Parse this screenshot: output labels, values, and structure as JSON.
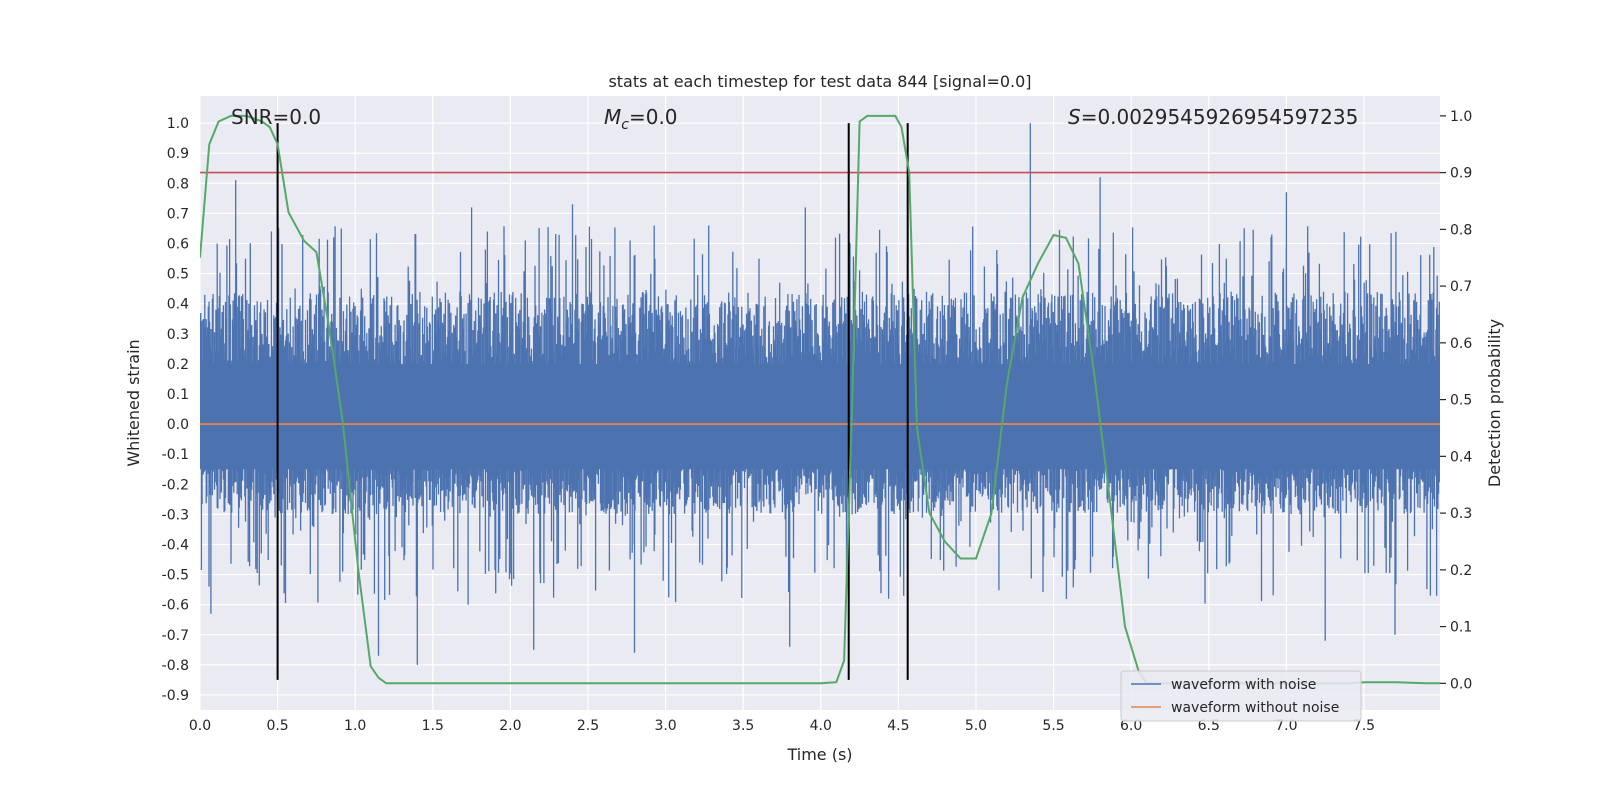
{
  "chart_data": {
    "type": "line",
    "title": "stats at each timestep for test data 844 [signal=0.0]",
    "xlabel": "Time (s)",
    "ylabel_left": "Whitened strain",
    "ylabel_right": "Detection probability",
    "xlim": [
      0.0,
      7.99
    ],
    "ylim_left": [
      -0.95,
      1.09
    ],
    "ylim_right": [
      -0.047,
      1.035
    ],
    "x_ticks": [
      "0.0",
      "0.5",
      "1.0",
      "1.5",
      "2.0",
      "2.5",
      "3.0",
      "3.5",
      "4.0",
      "4.5",
      "5.0",
      "5.5",
      "6.0",
      "6.5",
      "7.0",
      "7.5"
    ],
    "y_left_ticks": [
      "1.0",
      "0.9",
      "0.8",
      "0.7",
      "0.6",
      "0.5",
      "0.4",
      "0.3",
      "0.2",
      "0.1",
      "0.0",
      "-0.1",
      "-0.2",
      "-0.3",
      "-0.4",
      "-0.5",
      "-0.6",
      "-0.7",
      "-0.8",
      "-0.9"
    ],
    "y_right_ticks": [
      "1.0",
      "0.9",
      "0.8",
      "0.7",
      "0.6",
      "0.5",
      "0.4",
      "0.3",
      "0.2",
      "0.1",
      "0.0"
    ],
    "grid": true,
    "legend_position": "bottom-right",
    "annotations": {
      "snr": "SNR=0.0",
      "mc_symbol": "M",
      "mc_sub": "c",
      "mc_value": "=0.0",
      "s_symbol": "S",
      "s_value": "=0.002954592695459723​5"
    },
    "series": [
      {
        "name": "waveform with noise",
        "color": "#4c72b0",
        "kind": "noise",
        "band": [
          -0.3,
          0.44
        ],
        "x_range": [
          0.0,
          7.99
        ],
        "spikes": [
          {
            "x": 0.23,
            "y": 0.81
          },
          {
            "x": 0.46,
            "y": 0.64
          },
          {
            "x": 1.75,
            "y": 0.72
          },
          {
            "x": 2.4,
            "y": 0.73
          },
          {
            "x": 3.9,
            "y": 0.72
          },
          {
            "x": 5.35,
            "y": 1.0
          },
          {
            "x": 5.8,
            "y": 0.82
          },
          {
            "x": 7.0,
            "y": 0.77
          },
          {
            "x": 0.07,
            "y": -0.63
          },
          {
            "x": 1.4,
            "y": -0.8
          },
          {
            "x": 1.15,
            "y": -0.77
          },
          {
            "x": 2.15,
            "y": -0.75
          },
          {
            "x": 2.8,
            "y": -0.76
          },
          {
            "x": 3.8,
            "y": -0.74
          },
          {
            "x": 7.25,
            "y": -0.72
          },
          {
            "x": 7.7,
            "y": -0.7
          }
        ]
      },
      {
        "name": "waveform without noise",
        "color": "#dd8452",
        "x": [
          0.0,
          7.99
        ],
        "y": [
          0.0,
          0.0
        ]
      }
    ],
    "detection_probability": {
      "color": "#55a868",
      "x": [
        0.0,
        0.06,
        0.12,
        0.2,
        0.3,
        0.4,
        0.45,
        0.5,
        0.57,
        0.67,
        0.75,
        0.83,
        0.92,
        1.02,
        1.1,
        1.15,
        1.2,
        1.3,
        2.0,
        3.0,
        4.0,
        4.1,
        4.15,
        4.2,
        4.25,
        4.3,
        4.38,
        4.48,
        4.52,
        4.57,
        4.62,
        4.7,
        4.8,
        4.9,
        5.0,
        5.1,
        5.2,
        5.3,
        5.4,
        5.5,
        5.58,
        5.66,
        5.76,
        5.86,
        5.96,
        6.05,
        6.1,
        6.3,
        7.0,
        7.4,
        7.5,
        7.6,
        7.7,
        7.8,
        7.9,
        7.99
      ],
      "y": [
        0.75,
        0.95,
        0.99,
        1.0,
        1.0,
        0.99,
        0.98,
        0.95,
        0.83,
        0.78,
        0.76,
        0.63,
        0.46,
        0.2,
        0.03,
        0.01,
        0.0,
        0.0,
        0.0,
        0.0,
        0.0,
        0.002,
        0.04,
        0.47,
        0.99,
        1.0,
        1.0,
        1.0,
        0.98,
        0.9,
        0.45,
        0.3,
        0.25,
        0.22,
        0.22,
        0.3,
        0.53,
        0.68,
        0.74,
        0.79,
        0.785,
        0.74,
        0.55,
        0.33,
        0.1,
        0.02,
        0.0,
        0.0,
        0.0,
        0.0,
        0.002,
        0.002,
        0.002,
        0.001,
        0.0,
        0.0
      ]
    },
    "threshold": {
      "color": "#c44e52",
      "y_right": 0.9
    },
    "vlines": {
      "color": "#000000",
      "x": [
        0.5,
        4.18,
        4.56
      ],
      "y_range": [
        -0.85,
        1.0
      ]
    }
  }
}
